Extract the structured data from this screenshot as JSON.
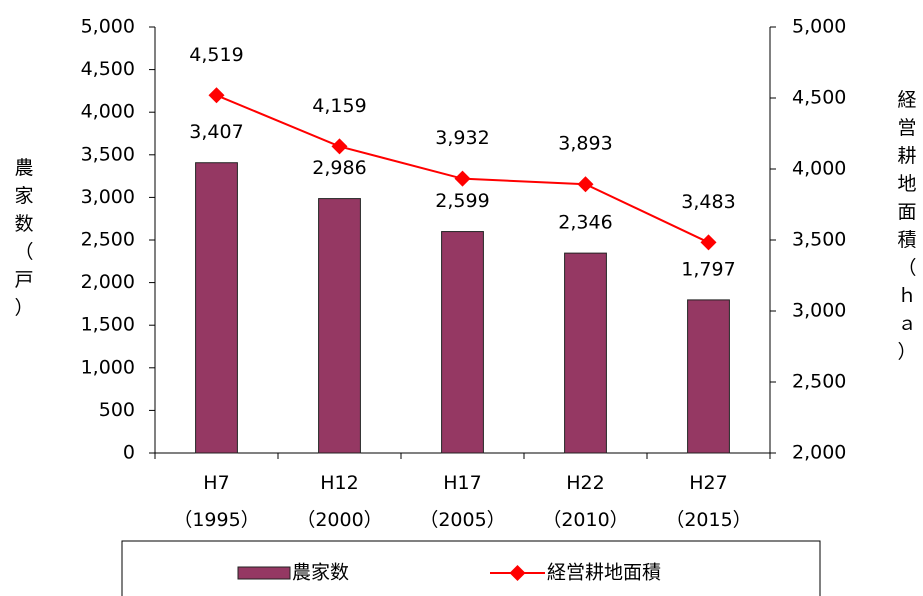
{
  "chart_data": {
    "type": "bar_line",
    "categories": [
      "H7\n（1995）",
      "H12\n（2000）",
      "H17\n（2005）",
      "H22\n（2010）",
      "H27\n（2015）"
    ],
    "ylabel": "農家数（戸）",
    "y2label": "経営耕地面積（ｈａ）",
    "series": [
      {
        "name": "農家数",
        "type": "bar",
        "color": "#953863",
        "values": [
          3407,
          2986,
          2599,
          2346,
          1797
        ],
        "value_labels": [
          "3,407",
          "2,986",
          "2,599",
          "2,346",
          "1,797"
        ]
      },
      {
        "name": "経営耕地面積",
        "type": "line",
        "axis": "y2",
        "color": "#ff0000",
        "values": [
          4519,
          4159,
          3932,
          3893,
          3483
        ],
        "value_labels": [
          "4,519",
          "4,159",
          "3,932",
          "3,893",
          "3,483"
        ]
      }
    ],
    "ylim": [
      0,
      5000
    ],
    "yticks": [
      0,
      500,
      {
        "value": 1000,
        "label": "1,000"
      },
      {
        "value": 1500,
        "label": "1,500"
      },
      {
        "value": 2000,
        "label": "2,000"
      },
      {
        "value": 2500,
        "label": "2,500"
      },
      {
        "value": 3000,
        "label": "3,000"
      },
      {
        "value": 3500,
        "label": "3,500"
      },
      {
        "value": 4000,
        "label": "4,000"
      },
      {
        "value": 4500,
        "label": "4,500"
      },
      {
        "value": 5000,
        "label": "5,000"
      }
    ],
    "y2lim": [
      2000,
      5000
    ],
    "y2ticks": [
      {
        "value": 2000,
        "label": "2,000"
      },
      {
        "value": 2500,
        "label": "2,500"
      },
      {
        "value": 3000,
        "label": "3,000"
      },
      {
        "value": 3500,
        "label": "3,500"
      },
      {
        "value": 4000,
        "label": "4,000"
      },
      {
        "value": 4500,
        "label": "4,500"
      },
      {
        "value": 5000,
        "label": "5,000"
      }
    ],
    "legend": "bottom"
  }
}
